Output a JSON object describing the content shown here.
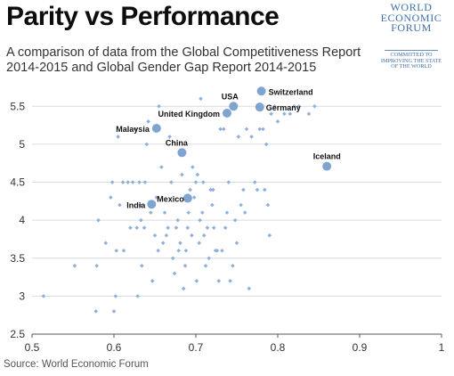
{
  "header": {
    "title": "Parity vs Performance",
    "subtitle": "A comparison of data from the Global Competitiveness Report 2014-2015 and Global Gender Gap Report 2014-2015"
  },
  "logo": {
    "name": "WORLD\nECONOMIC\nFORUM",
    "tagline": "COMMITTED TO\nIMPROVING THE STATE\nOF THE WORLD",
    "color": "#3d6fa8"
  },
  "footer": {
    "source": "Source: World Economic Forum"
  },
  "chart_data": {
    "type": "scatter",
    "xlim": [
      0.5,
      1
    ],
    "ylim": [
      2.5,
      5.75
    ],
    "x_ticks": [
      "0.5",
      "0.6",
      "0.7",
      "0.8",
      "0.9",
      "1"
    ],
    "y_ticks": [
      "2.5",
      "3",
      "3.5",
      "4",
      "4.5",
      "5",
      "5.5"
    ],
    "grid": "horizontal",
    "point_color": "#8fb0d8",
    "highlight_color": "#7fa4d2",
    "highlighted": [
      {
        "label": "USA",
        "x": 0.746,
        "y": 5.5
      },
      {
        "label": "Switzerland",
        "x": 0.78,
        "y": 5.7
      },
      {
        "label": "United Kingdom",
        "x": 0.738,
        "y": 5.41
      },
      {
        "label": "Germany",
        "x": 0.778,
        "y": 5.49
      },
      {
        "label": "Malaysia",
        "x": 0.652,
        "y": 5.21
      },
      {
        "label": "China",
        "x": 0.683,
        "y": 4.89
      },
      {
        "label": "Iceland",
        "x": 0.86,
        "y": 4.71
      },
      {
        "label": "Mexico",
        "x": 0.69,
        "y": 4.29
      },
      {
        "label": "India",
        "x": 0.646,
        "y": 4.21
      }
    ],
    "points": [
      [
        0.514,
        3.0
      ],
      [
        0.552,
        3.4
      ],
      [
        0.578,
        2.8
      ],
      [
        0.579,
        3.4
      ],
      [
        0.581,
        4.0
      ],
      [
        0.59,
        3.7
      ],
      [
        0.596,
        4.3
      ],
      [
        0.598,
        4.5
      ],
      [
        0.6,
        2.8
      ],
      [
        0.602,
        3.0
      ],
      [
        0.603,
        3.6
      ],
      [
        0.605,
        5.1
      ],
      [
        0.607,
        4.2
      ],
      [
        0.611,
        4.5
      ],
      [
        0.612,
        3.6
      ],
      [
        0.617,
        4.5
      ],
      [
        0.62,
        3.9
      ],
      [
        0.623,
        4.5
      ],
      [
        0.626,
        5.2
      ],
      [
        0.628,
        3.9
      ],
      [
        0.629,
        3.0
      ],
      [
        0.631,
        4.5
      ],
      [
        0.632,
        4.2
      ],
      [
        0.633,
        4.0
      ],
      [
        0.634,
        3.4
      ],
      [
        0.637,
        3.9
      ],
      [
        0.638,
        4.5
      ],
      [
        0.64,
        5.0
      ],
      [
        0.642,
        5.3
      ],
      [
        0.645,
        4.1
      ],
      [
        0.647,
        3.2
      ],
      [
        0.65,
        3.8
      ],
      [
        0.652,
        4.3
      ],
      [
        0.654,
        3.6
      ],
      [
        0.655,
        5.5
      ],
      [
        0.658,
        4.7
      ],
      [
        0.66,
        3.7
      ],
      [
        0.662,
        4.1
      ],
      [
        0.664,
        3.8
      ],
      [
        0.666,
        3.9
      ],
      [
        0.668,
        5.1
      ],
      [
        0.67,
        4.5
      ],
      [
        0.672,
        3.5
      ],
      [
        0.674,
        3.3
      ],
      [
        0.676,
        3.9
      ],
      [
        0.678,
        4.0
      ],
      [
        0.679,
        3.6
      ],
      [
        0.681,
        3.7
      ],
      [
        0.683,
        4.6
      ],
      [
        0.685,
        3.1
      ],
      [
        0.687,
        3.4
      ],
      [
        0.688,
        3.6
      ],
      [
        0.69,
        3.9
      ],
      [
        0.691,
        4.1
      ],
      [
        0.693,
        4.4
      ],
      [
        0.695,
        3.8
      ],
      [
        0.696,
        4.7
      ],
      [
        0.698,
        4.3
      ],
      [
        0.7,
        4.5
      ],
      [
        0.701,
        3.2
      ],
      [
        0.702,
        4.6
      ],
      [
        0.704,
        3.7
      ],
      [
        0.705,
        4.0
      ],
      [
        0.706,
        5.6
      ],
      [
        0.708,
        4.1
      ],
      [
        0.709,
        4.5
      ],
      [
        0.71,
        3.8
      ],
      [
        0.712,
        3.4
      ],
      [
        0.714,
        3.9
      ],
      [
        0.716,
        3.5
      ],
      [
        0.718,
        4.4
      ],
      [
        0.72,
        4.2
      ],
      [
        0.721,
        4.4
      ],
      [
        0.722,
        3.9
      ],
      [
        0.724,
        3.6
      ],
      [
        0.726,
        3.6
      ],
      [
        0.728,
        3.2
      ],
      [
        0.73,
        5.2
      ],
      [
        0.732,
        3.6
      ],
      [
        0.734,
        5.2
      ],
      [
        0.736,
        3.9
      ],
      [
        0.738,
        4.1
      ],
      [
        0.74,
        4.5
      ],
      [
        0.742,
        3.2
      ],
      [
        0.745,
        3.4
      ],
      [
        0.748,
        4.0
      ],
      [
        0.75,
        3.7
      ],
      [
        0.752,
        5.1
      ],
      [
        0.755,
        4.2
      ],
      [
        0.758,
        4.4
      ],
      [
        0.76,
        4.1
      ],
      [
        0.762,
        5.2
      ],
      [
        0.765,
        3.1
      ],
      [
        0.768,
        5.1
      ],
      [
        0.772,
        4.5
      ],
      [
        0.775,
        4.4
      ],
      [
        0.778,
        5.2
      ],
      [
        0.782,
        5.2
      ],
      [
        0.784,
        4.4
      ],
      [
        0.786,
        5.0
      ],
      [
        0.788,
        4.2
      ],
      [
        0.79,
        3.8
      ],
      [
        0.792,
        5.4
      ],
      [
        0.796,
        5.5
      ],
      [
        0.8,
        5.3
      ],
      [
        0.808,
        5.4
      ],
      [
        0.815,
        5.4
      ],
      [
        0.82,
        5.5
      ],
      [
        0.826,
        5.5
      ],
      [
        0.838,
        5.4
      ],
      [
        0.845,
        5.5
      ]
    ]
  }
}
